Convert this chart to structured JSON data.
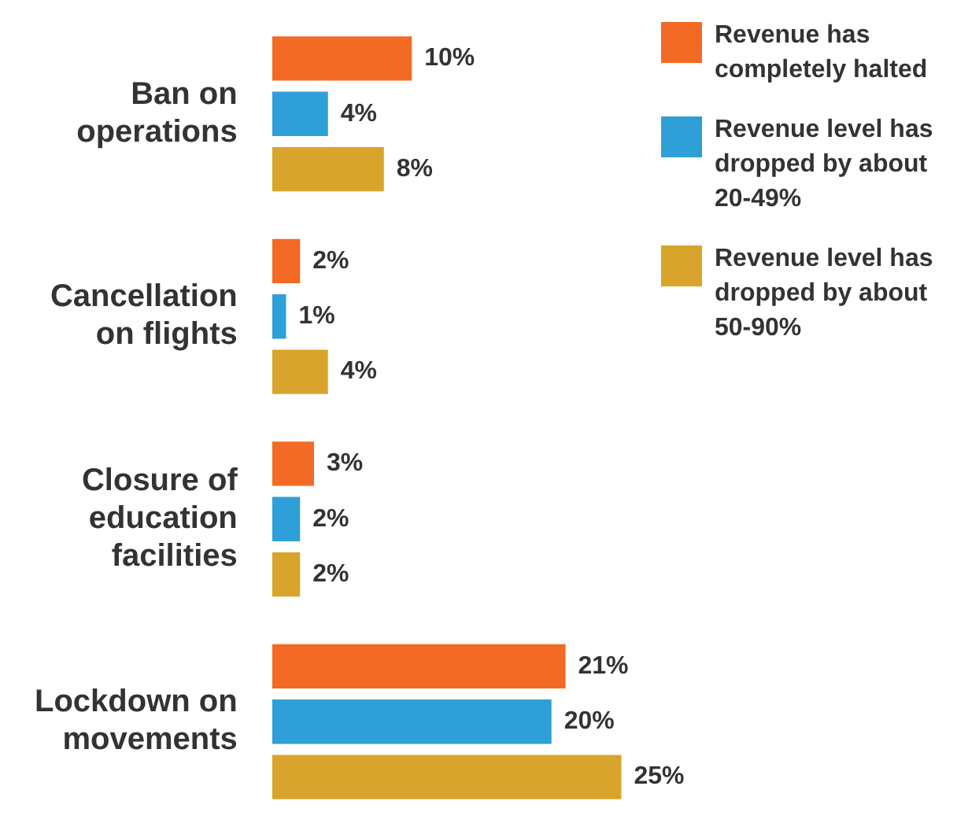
{
  "chart_data": {
    "type": "bar",
    "orientation": "horizontal",
    "categories": [
      "Ban on operations",
      "Cancellation on flights",
      "Closure of education facilities",
      "Lockdown on movements"
    ],
    "series": [
      {
        "name": "Revenue has completely halted",
        "color": "#f26a24",
        "values": [
          10,
          2,
          3,
          21
        ],
        "value_labels": [
          "10%",
          "2%",
          "3%",
          "21%"
        ]
      },
      {
        "name": "Revenue level has dropped by about 20-49%",
        "color": "#2f9fd8",
        "values": [
          4,
          1,
          2,
          20
        ],
        "value_labels": [
          "4%",
          "1%",
          "2%",
          "20%"
        ]
      },
      {
        "name": "Revenue level has dropped by about 50-90%",
        "color": "#d9a42b",
        "values": [
          8,
          4,
          2,
          25
        ],
        "value_labels": [
          "8%",
          "4%",
          "2%",
          "25%"
        ]
      }
    ],
    "legend": "top right",
    "tick_labels": "y"
  }
}
